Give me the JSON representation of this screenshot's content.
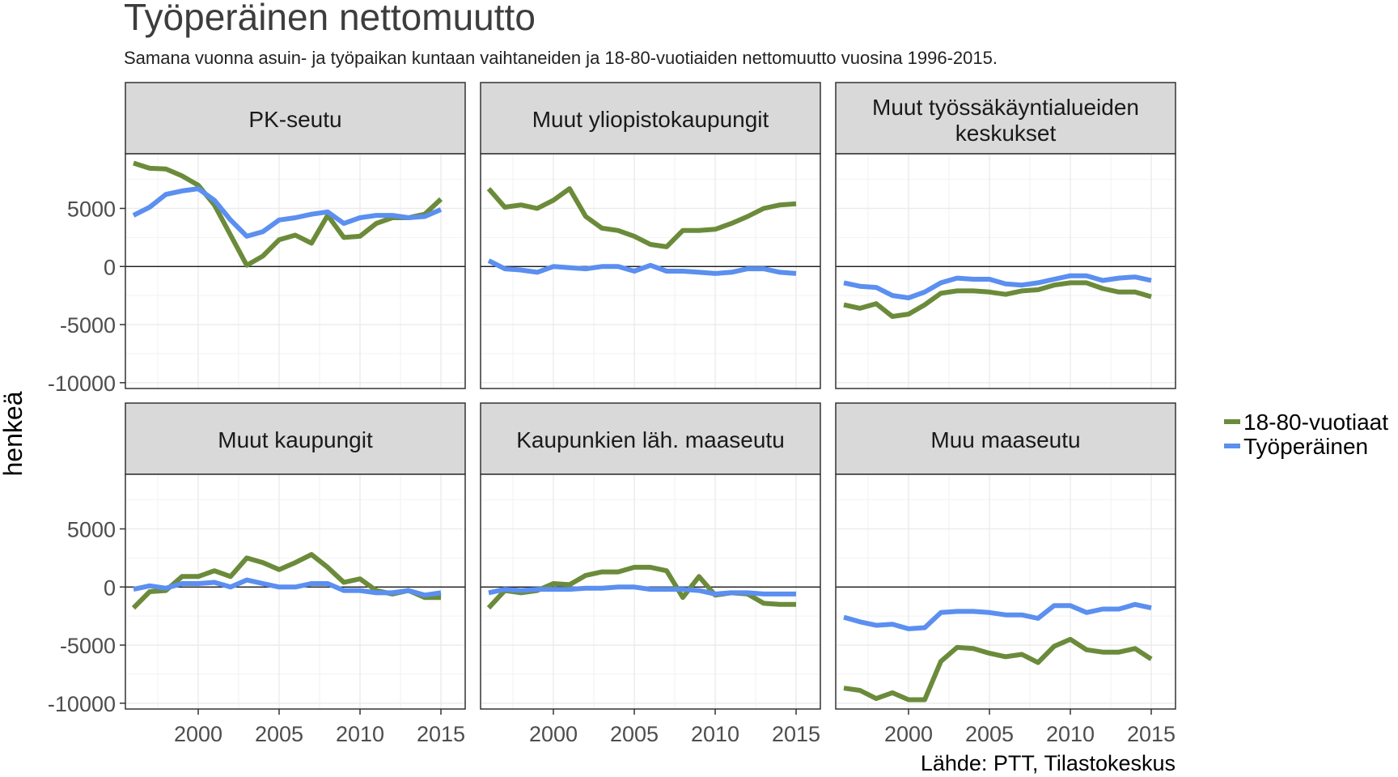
{
  "title": "Työperäinen nettomuutto",
  "subtitle": "Samana vuonna asuin- ja työpaikan kuntaan vaihtaneiden ja 18-80-vuotiaiden nettomuutto vuosina 1996-2015.",
  "caption": "Lähde: PTT, Tilastokeskus",
  "colors": {
    "18-80-vuotiaat": "#6b8b3a",
    "Työperäinen": "#5b8ff0",
    "strip_bg": "#d9d9d9",
    "grid": "#ebebeb"
  },
  "chart_data": {
    "type": "line",
    "ylabel": "henkeä",
    "xlabel": "",
    "x_ticks": [
      2000,
      2005,
      2010,
      2015
    ],
    "y_ticks": [
      5000,
      0,
      -5000,
      -10000
    ],
    "y_tick_labels": [
      "5000",
      "0",
      "-5000",
      "-10000"
    ],
    "xlim": [
      1995.5,
      2016.5
    ],
    "ylim": [
      -10500,
      9700
    ],
    "grid": true,
    "hline": 0,
    "legend": {
      "position": "right",
      "entries": [
        "18-80-vuotiaat",
        "Työperäinen"
      ]
    },
    "x": [
      1996,
      1997,
      1998,
      1999,
      2000,
      2001,
      2002,
      2003,
      2004,
      2005,
      2006,
      2007,
      2008,
      2009,
      2010,
      2011,
      2012,
      2013,
      2014,
      2015
    ],
    "facets": [
      {
        "label": "PK-seutu",
        "series": [
          {
            "name": "18-80-vuotiaat",
            "values": [
              8900,
              8450,
              8400,
              7800,
              7000,
              5300,
              2700,
              100,
              900,
              2300,
              2700,
              2000,
              4400,
              2500,
              2600,
              3700,
              4200,
              4200,
              4500,
              5800
            ]
          },
          {
            "name": "Työperäinen",
            "values": [
              4400,
              5100,
              6200,
              6500,
              6700,
              5700,
              4000,
              2600,
              3000,
              4000,
              4200,
              4500,
              4700,
              3700,
              4200,
              4400,
              4400,
              4200,
              4300,
              4900
            ]
          }
        ]
      },
      {
        "label": "Muut yliopistokaupungit",
        "series": [
          {
            "name": "18-80-vuotiaat",
            "values": [
              6700,
              5100,
              5300,
              5000,
              5700,
              6700,
              4300,
              3300,
              3100,
              2600,
              1900,
              1700,
              3100,
              3100,
              3200,
              3700,
              4300,
              5000,
              5300,
              5400
            ]
          },
          {
            "name": "Työperäinen",
            "values": [
              500,
              -200,
              -300,
              -500,
              0,
              -100,
              -200,
              0,
              0,
              -400,
              100,
              -400,
              -400,
              -500,
              -600,
              -500,
              -200,
              -200,
              -500,
              -600
            ]
          }
        ]
      },
      {
        "label": "Muut työssäkäyntialueiden keskukset",
        "lines": [
          "Muut työssäkäyntialueiden",
          "keskukset"
        ],
        "series": [
          {
            "name": "18-80-vuotiaat",
            "values": [
              -3300,
              -3600,
              -3200,
              -4300,
              -4100,
              -3300,
              -2300,
              -2100,
              -2100,
              -2200,
              -2400,
              -2100,
              -2000,
              -1600,
              -1400,
              -1400,
              -1900,
              -2200,
              -2200,
              -2600
            ]
          },
          {
            "name": "Työperäinen",
            "values": [
              -1400,
              -1700,
              -1800,
              -2500,
              -2700,
              -2200,
              -1400,
              -1000,
              -1100,
              -1100,
              -1500,
              -1600,
              -1400,
              -1100,
              -800,
              -800,
              -1200,
              -1000,
              -900,
              -1200
            ]
          }
        ]
      },
      {
        "label": "Muut kaupungit",
        "series": [
          {
            "name": "18-80-vuotiaat",
            "values": [
              -1800,
              -400,
              -300,
              900,
              900,
              1400,
              900,
              2500,
              2100,
              1500,
              2100,
              2800,
              1700,
              400,
              700,
              -300,
              -600,
              -300,
              -900,
              -900
            ]
          },
          {
            "name": "Työperäinen",
            "values": [
              -200,
              100,
              -100,
              300,
              300,
              400,
              0,
              600,
              300,
              0,
              0,
              300,
              300,
              -300,
              -300,
              -500,
              -500,
              -300,
              -700,
              -500
            ]
          }
        ]
      },
      {
        "label": "Kaupunkien läh. maaseutu",
        "series": [
          {
            "name": "18-80-vuotiaat",
            "values": [
              -1800,
              -300,
              -500,
              -300,
              300,
              200,
              1000,
              1300,
              1300,
              1700,
              1700,
              1400,
              -900,
              900,
              -700,
              -500,
              -600,
              -1400,
              -1500,
              -1500
            ]
          },
          {
            "name": "Työperäinen",
            "values": [
              -500,
              -200,
              -300,
              -200,
              -200,
              -200,
              -100,
              -100,
              0,
              0,
              -200,
              -200,
              -200,
              -300,
              -600,
              -500,
              -500,
              -600,
              -600,
              -600
            ]
          }
        ]
      },
      {
        "label": "Muu maaseutu",
        "series": [
          {
            "name": "18-80-vuotiaat",
            "values": [
              -8700,
              -8900,
              -9600,
              -9100,
              -9700,
              -9700,
              -6400,
              -5200,
              -5300,
              -5700,
              -6000,
              -5800,
              -6500,
              -5100,
              -4500,
              -5400,
              -5600,
              -5600,
              -5300,
              -6200
            ]
          },
          {
            "name": "Työperäinen",
            "values": [
              -2600,
              -3000,
              -3300,
              -3200,
              -3600,
              -3500,
              -2200,
              -2100,
              -2100,
              -2200,
              -2400,
              -2400,
              -2700,
              -1600,
              -1600,
              -2200,
              -1900,
              -1900,
              -1500,
              -1800
            ]
          }
        ]
      }
    ]
  }
}
